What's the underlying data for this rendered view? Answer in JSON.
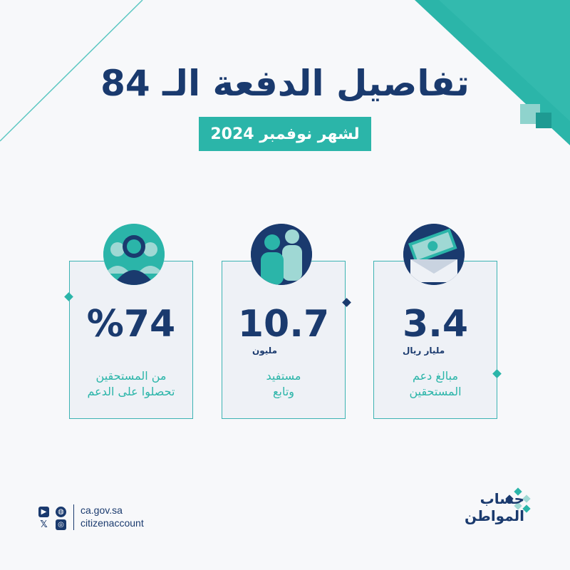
{
  "header": {
    "title": "تفاصيل الدفعة الـ 84",
    "subtitle": "لشهر نوفمبر 2024"
  },
  "cards": [
    {
      "icon": "people-group-icon",
      "value": "%74",
      "unit": "",
      "desc_line1": "من المستحقين",
      "desc_line2": "تحصلوا على الدعم"
    },
    {
      "icon": "beneficiaries-icon",
      "value": "10.7",
      "unit": "مليون",
      "desc_line1": "مستفيد",
      "desc_line2": "وتابع"
    },
    {
      "icon": "money-envelope-icon",
      "value": "3.4",
      "unit": "مليار ريال",
      "desc_line1": "مبالغ دعم",
      "desc_line2": "المستحقين"
    }
  ],
  "footer": {
    "website": "ca.gov.sa",
    "handle": "citizenaccount",
    "logo_line1": "حساب",
    "logo_line2": "المواطن"
  },
  "colors": {
    "navy": "#1a3a6e",
    "teal": "#2bb5a9",
    "light_teal": "#9fd8d4",
    "background": "#f7f8fa"
  }
}
